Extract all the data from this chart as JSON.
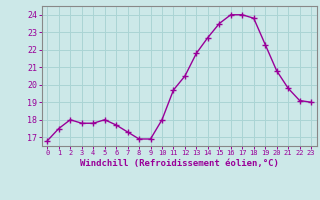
{
  "x": [
    0,
    1,
    2,
    3,
    4,
    5,
    6,
    7,
    8,
    9,
    10,
    11,
    12,
    13,
    14,
    15,
    16,
    17,
    18,
    19,
    20,
    21,
    22,
    23
  ],
  "y": [
    16.8,
    17.5,
    18.0,
    17.8,
    17.8,
    18.0,
    17.7,
    17.3,
    16.9,
    16.9,
    18.0,
    19.7,
    20.5,
    21.8,
    22.7,
    23.5,
    24.0,
    24.0,
    23.8,
    22.3,
    20.8,
    19.8,
    19.1,
    19.0
  ],
  "line_color": "#990099",
  "marker": "+",
  "marker_size": 4,
  "marker_lw": 1.0,
  "bg_color": "#cce8e8",
  "grid_color": "#aad4d4",
  "xlabel": "Windchill (Refroidissement éolien,°C)",
  "xlabel_color": "#990099",
  "ylabel_ticks": [
    17,
    18,
    19,
    20,
    21,
    22,
    23,
    24
  ],
  "ylim": [
    16.5,
    24.5
  ],
  "xlim": [
    -0.5,
    23.5
  ],
  "tick_color": "#990099",
  "spine_color": "#888888",
  "xtick_fontsize": 5.0,
  "ytick_fontsize": 6.0,
  "xlabel_fontsize": 6.5,
  "linewidth": 1.0
}
